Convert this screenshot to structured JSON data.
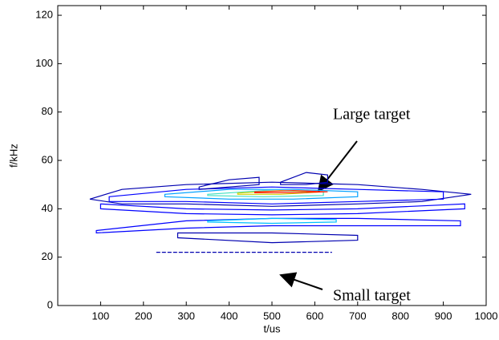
{
  "chart_data": {
    "type": "contour",
    "xlabel": "t/us",
    "ylabel": "f/kHz",
    "xlim": [
      0,
      1000
    ],
    "ylim": [
      0,
      124
    ],
    "xticks": [
      100,
      200,
      300,
      400,
      500,
      600,
      700,
      800,
      900,
      1000
    ],
    "yticks": [
      0,
      20,
      40,
      60,
      80,
      100,
      120
    ],
    "annotations": [
      {
        "text": "Large target"
      },
      {
        "text": "Small target"
      }
    ],
    "series": [
      {
        "color": "#0000b0",
        "x": [
          75,
          150,
          300,
          500,
          700,
          850,
          965,
          850,
          700,
          500,
          300,
          150
        ],
        "y": [
          44,
          48,
          50,
          51,
          50,
          48,
          46,
          43,
          42,
          41,
          42,
          42
        ]
      },
      {
        "color": "#0000ff",
        "x": [
          120,
          300,
          500,
          700,
          900,
          900,
          700,
          500,
          300,
          120
        ],
        "y": [
          45,
          48,
          49,
          48,
          47,
          44,
          43,
          42,
          43,
          43
        ]
      },
      {
        "color": "#0000ff",
        "x": [
          100,
          300,
          500,
          700,
          950,
          950,
          700,
          500,
          300,
          100
        ],
        "y": [
          42,
          40,
          39.5,
          40,
          42,
          40,
          38,
          37.5,
          38,
          40
        ]
      },
      {
        "color": "#00a0ff",
        "x": [
          250,
          400,
          550,
          700,
          700,
          550,
          400,
          250
        ],
        "y": [
          46,
          48,
          48,
          47,
          45,
          44,
          44,
          45
        ]
      },
      {
        "color": "#40e0c0",
        "x": [
          350,
          480,
          620,
          620,
          480,
          350
        ],
        "y": [
          46,
          47.5,
          47,
          45.5,
          45,
          45.5
        ]
      },
      {
        "color": "#d0d000",
        "x": [
          420,
          520,
          620,
          520,
          420
        ],
        "y": [
          46.5,
          47.5,
          47,
          46,
          46
        ]
      },
      {
        "color": "#ff2000",
        "x": [
          460,
          550,
          630,
          550,
          460
        ],
        "y": [
          47,
          47.5,
          47,
          46.6,
          46.6
        ]
      },
      {
        "color": "#0000b0",
        "x": [
          330,
          400,
          470,
          470,
          400,
          330
        ],
        "y": [
          49,
          52,
          53,
          50,
          49,
          48
        ]
      },
      {
        "color": "#0000b0",
        "x": [
          520,
          580,
          630,
          630,
          580,
          520
        ],
        "y": [
          51,
          55,
          54,
          51,
          50,
          50
        ]
      },
      {
        "color": "#0000ff",
        "x": [
          90,
          300,
          500,
          700,
          940,
          940,
          700,
          500,
          300,
          90
        ],
        "y": [
          31,
          35,
          36,
          36,
          35,
          33,
          33,
          33,
          32,
          30
        ]
      },
      {
        "color": "#00c0ff",
        "x": [
          350,
          500,
          650,
          650,
          500,
          350
        ],
        "y": [
          35,
          36,
          35.5,
          34.5,
          34,
          34.5
        ]
      },
      {
        "color": "#0000b0",
        "x": [
          280,
          500,
          700,
          700,
          500,
          280
        ],
        "y": [
          30,
          30,
          29,
          27,
          26,
          28
        ]
      },
      {
        "color": "#0000b0",
        "x": [
          230,
          640
        ],
        "y": [
          22,
          22
        ]
      }
    ]
  }
}
